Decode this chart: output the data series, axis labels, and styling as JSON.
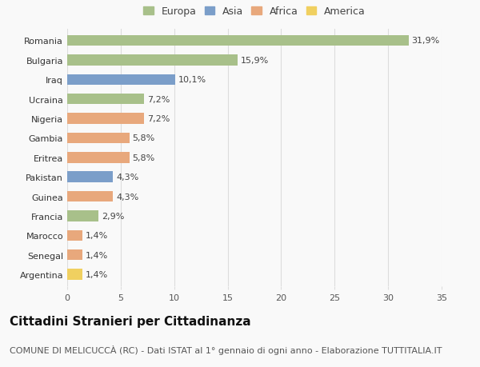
{
  "countries": [
    "Romania",
    "Bulgaria",
    "Iraq",
    "Ucraina",
    "Nigeria",
    "Gambia",
    "Eritrea",
    "Pakistan",
    "Guinea",
    "Francia",
    "Marocco",
    "Senegal",
    "Argentina"
  ],
  "values": [
    31.9,
    15.9,
    10.1,
    7.2,
    7.2,
    5.8,
    5.8,
    4.3,
    4.3,
    2.9,
    1.4,
    1.4,
    1.4
  ],
  "labels": [
    "31,9%",
    "15,9%",
    "10,1%",
    "7,2%",
    "7,2%",
    "5,8%",
    "5,8%",
    "4,3%",
    "4,3%",
    "2,9%",
    "1,4%",
    "1,4%",
    "1,4%"
  ],
  "continents": [
    "Europa",
    "Europa",
    "Asia",
    "Europa",
    "Africa",
    "Africa",
    "Africa",
    "Asia",
    "Africa",
    "Europa",
    "Africa",
    "Africa",
    "America"
  ],
  "colors": {
    "Europa": "#a8c08a",
    "Asia": "#7b9ec9",
    "Africa": "#e8a87c",
    "America": "#f0d060"
  },
  "legend_order": [
    "Europa",
    "Asia",
    "Africa",
    "America"
  ],
  "title": "Cittadini Stranieri per Cittadinanza",
  "subtitle": "COMUNE DI MELICUCCÀ (RC) - Dati ISTAT al 1° gennaio di ogni anno - Elaborazione TUTTITALIA.IT",
  "xlim": [
    0,
    35
  ],
  "xticks": [
    0,
    5,
    10,
    15,
    20,
    25,
    30,
    35
  ],
  "bg_color": "#f9f9f9",
  "grid_color": "#dddddd",
  "bar_height": 0.55,
  "title_fontsize": 11,
  "subtitle_fontsize": 8,
  "label_fontsize": 8,
  "tick_fontsize": 8,
  "legend_fontsize": 9
}
